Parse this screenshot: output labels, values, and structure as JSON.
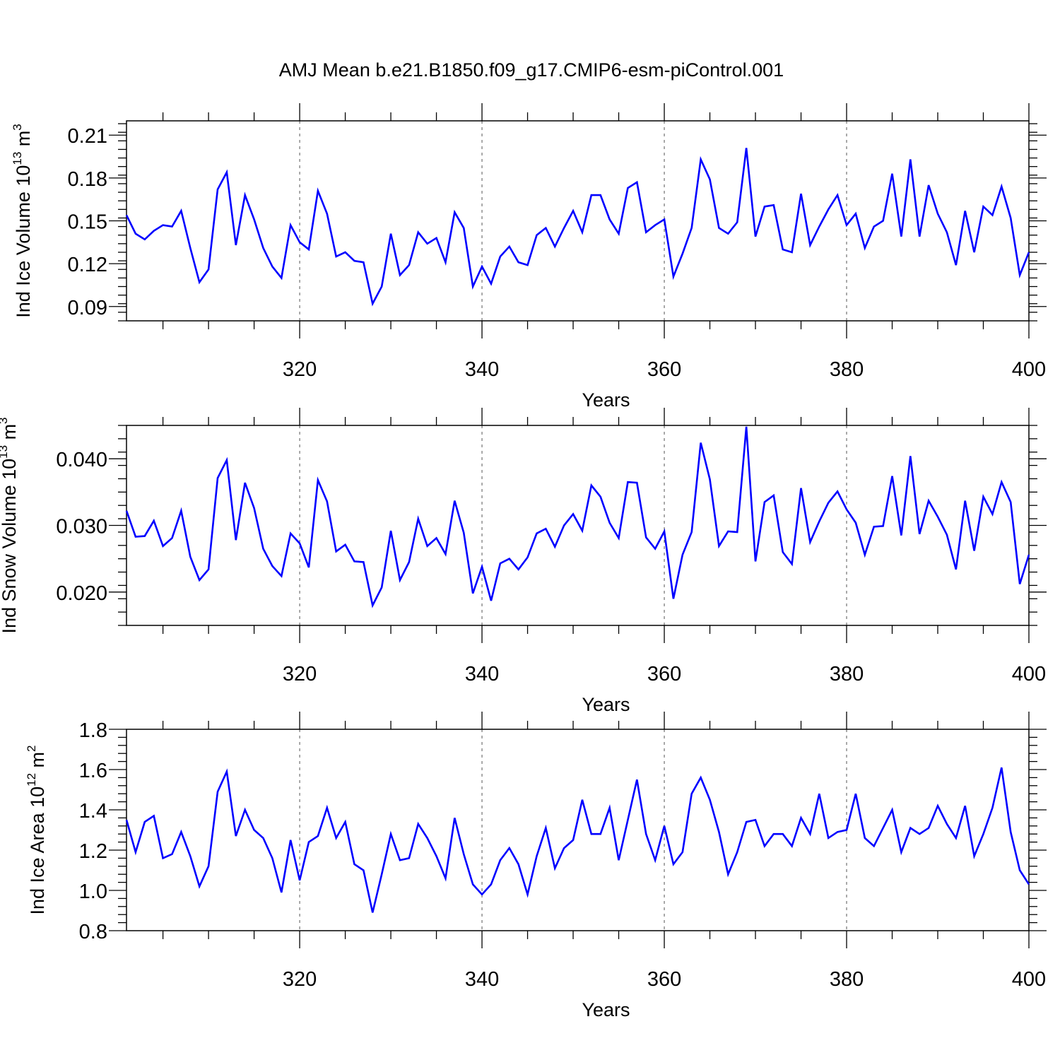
{
  "chart_data": [
    {
      "type": "line",
      "title": "AMJ Mean b.e21.B1850.f09_g17.CMIP6-esm-piControl.001",
      "xlabel": "Years",
      "ylabel": {
        "prefix": "Ind Ice Volume 10",
        "exp": "13",
        "unit": " m",
        "unit_exp": "3"
      },
      "xlim": [
        301,
        400
      ],
      "ylim": [
        0.08,
        0.22
      ],
      "x_ticks": [
        320,
        340,
        360,
        380,
        400
      ],
      "x_tick_labels": [
        "320",
        "340",
        "360",
        "380",
        "400"
      ],
      "y_ticks": [
        0.09,
        0.12,
        0.15,
        0.18,
        0.21
      ],
      "y_tick_labels": [
        "0.09",
        "0.12",
        "0.15",
        "0.18",
        "0.21"
      ],
      "grid": "dashed vertical at major x ticks",
      "color": "#0000ff",
      "x_start": 301,
      "values": [
        0.154,
        0.141,
        0.137,
        0.143,
        0.147,
        0.146,
        0.157,
        0.131,
        0.107,
        0.116,
        0.172,
        0.184,
        0.133,
        0.168,
        0.151,
        0.131,
        0.118,
        0.11,
        0.147,
        0.135,
        0.13,
        0.171,
        0.155,
        0.125,
        0.128,
        0.122,
        0.121,
        0.092,
        0.104,
        0.141,
        0.112,
        0.119,
        0.142,
        0.134,
        0.138,
        0.121,
        0.156,
        0.145,
        0.104,
        0.118,
        0.106,
        0.125,
        0.132,
        0.121,
        0.119,
        0.14,
        0.145,
        0.132,
        0.145,
        0.157,
        0.142,
        0.168,
        0.168,
        0.151,
        0.141,
        0.173,
        0.177,
        0.142,
        0.147,
        0.151,
        0.111,
        0.127,
        0.145,
        0.193,
        0.179,
        0.145,
        0.141,
        0.149,
        0.201,
        0.139,
        0.16,
        0.161,
        0.13,
        0.128,
        0.169,
        0.133,
        0.146,
        0.158,
        0.168,
        0.147,
        0.155,
        0.131,
        0.146,
        0.15,
        0.183,
        0.139,
        0.193,
        0.139,
        0.175,
        0.155,
        0.142,
        0.119,
        0.157,
        0.128,
        0.16,
        0.154,
        0.174,
        0.152,
        0.112,
        0.128
      ]
    },
    {
      "type": "line",
      "title": "",
      "xlabel": "Years",
      "ylabel": {
        "prefix": "Ind Snow Volume 10",
        "exp": "13",
        "unit": " m",
        "unit_exp": "3"
      },
      "xlim": [
        301,
        400
      ],
      "ylim": [
        0.015,
        0.045
      ],
      "x_ticks": [
        320,
        340,
        360,
        380,
        400
      ],
      "x_tick_labels": [
        "320",
        "340",
        "360",
        "380",
        "400"
      ],
      "y_ticks": [
        0.02,
        0.03,
        0.04
      ],
      "y_tick_labels": [
        "0.020",
        "0.030",
        "0.040"
      ],
      "grid": "dashed vertical at major x ticks",
      "color": "#0000ff",
      "x_start": 301,
      "values": [
        0.0322,
        0.0283,
        0.0284,
        0.0307,
        0.0269,
        0.0281,
        0.0322,
        0.0253,
        0.0218,
        0.0234,
        0.0371,
        0.0398,
        0.0278,
        0.0364,
        0.0326,
        0.0265,
        0.0239,
        0.0224,
        0.0288,
        0.0273,
        0.0237,
        0.0368,
        0.0336,
        0.0261,
        0.0271,
        0.0246,
        0.0245,
        0.018,
        0.0207,
        0.0292,
        0.0218,
        0.0245,
        0.031,
        0.0269,
        0.0281,
        0.0257,
        0.0337,
        0.0289,
        0.0198,
        0.0238,
        0.0187,
        0.0243,
        0.025,
        0.0234,
        0.0252,
        0.0288,
        0.0295,
        0.0268,
        0.03,
        0.0317,
        0.0292,
        0.036,
        0.0343,
        0.0304,
        0.0281,
        0.0365,
        0.0364,
        0.0282,
        0.0265,
        0.0291,
        0.019,
        0.0256,
        0.029,
        0.0424,
        0.0369,
        0.0269,
        0.0291,
        0.029,
        0.0448,
        0.0246,
        0.0335,
        0.0345,
        0.026,
        0.0242,
        0.0356,
        0.0275,
        0.0306,
        0.0334,
        0.0351,
        0.0324,
        0.0304,
        0.0256,
        0.0298,
        0.0299,
        0.0374,
        0.0285,
        0.0404,
        0.0287,
        0.0337,
        0.0313,
        0.0286,
        0.0234,
        0.0337,
        0.0262,
        0.0343,
        0.0317,
        0.0365,
        0.0335,
        0.0212,
        0.0256
      ]
    },
    {
      "type": "line",
      "title": "",
      "xlabel": "Years",
      "ylabel": {
        "prefix": "Ind Ice Area 10",
        "exp": "12",
        "unit": " m",
        "unit_exp": "2"
      },
      "xlim": [
        301,
        400
      ],
      "ylim": [
        0.8,
        1.8
      ],
      "x_ticks": [
        320,
        340,
        360,
        380,
        400
      ],
      "x_tick_labels": [
        "320",
        "340",
        "360",
        "380",
        "400"
      ],
      "y_ticks": [
        0.8,
        1.0,
        1.2,
        1.4,
        1.6,
        1.8
      ],
      "y_tick_labels": [
        "0.8",
        "1.0",
        "1.2",
        "1.4",
        "1.6",
        "1.8"
      ],
      "grid": "dashed vertical at major x ticks",
      "color": "#0000ff",
      "x_start": 301,
      "values": [
        1.35,
        1.19,
        1.34,
        1.37,
        1.16,
        1.18,
        1.29,
        1.17,
        1.02,
        1.12,
        1.49,
        1.59,
        1.27,
        1.4,
        1.3,
        1.26,
        1.16,
        0.99,
        1.25,
        1.05,
        1.24,
        1.27,
        1.41,
        1.26,
        1.34,
        1.13,
        1.1,
        0.89,
        1.08,
        1.28,
        1.15,
        1.16,
        1.33,
        1.26,
        1.17,
        1.06,
        1.36,
        1.18,
        1.03,
        0.98,
        1.03,
        1.15,
        1.21,
        1.13,
        0.98,
        1.17,
        1.31,
        1.11,
        1.21,
        1.25,
        1.45,
        1.28,
        1.28,
        1.41,
        1.15,
        1.35,
        1.55,
        1.28,
        1.15,
        1.32,
        1.13,
        1.19,
        1.48,
        1.56,
        1.45,
        1.29,
        1.08,
        1.19,
        1.34,
        1.35,
        1.22,
        1.28,
        1.28,
        1.22,
        1.36,
        1.28,
        1.48,
        1.26,
        1.29,
        1.3,
        1.48,
        1.26,
        1.22,
        1.31,
        1.4,
        1.19,
        1.31,
        1.28,
        1.31,
        1.42,
        1.33,
        1.26,
        1.42,
        1.17,
        1.28,
        1.41,
        1.61,
        1.29,
        1.1,
        1.03
      ]
    }
  ]
}
